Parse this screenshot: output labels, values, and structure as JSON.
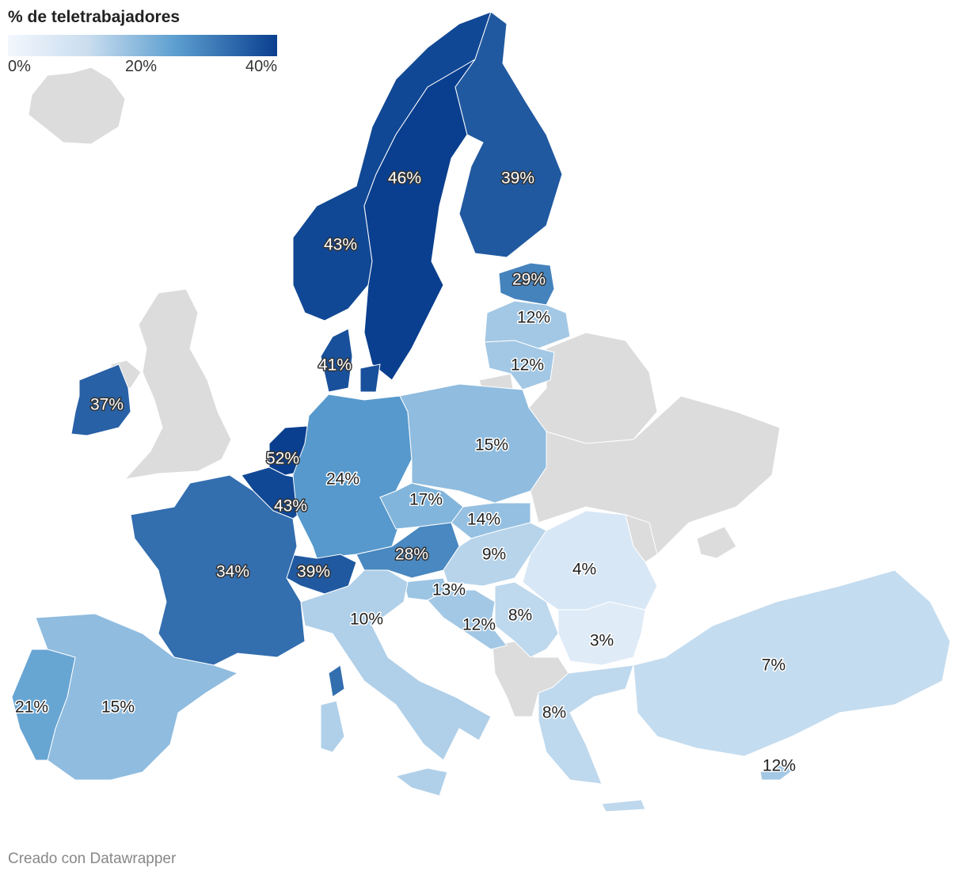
{
  "legend": {
    "title": "% de teletrabajadores",
    "ticks": [
      "0%",
      "20%",
      "40%"
    ]
  },
  "footer": {
    "credit": "Creado con Datawrapper"
  },
  "colors": {
    "no_data": "#dcdcdc",
    "scale_low": "#f3f7fd",
    "scale_mid": "#5d9fd0",
    "scale_high": "#0a3f8f"
  },
  "regions": [
    {
      "id": "iceland",
      "value": null
    },
    {
      "id": "united-kingdom",
      "value": null
    },
    {
      "id": "ireland",
      "value": 37,
      "label": "37%"
    },
    {
      "id": "norway",
      "value": 43,
      "label": "43%"
    },
    {
      "id": "sweden",
      "value": 46,
      "label": "46%"
    },
    {
      "id": "finland",
      "value": 39,
      "label": "39%"
    },
    {
      "id": "estonia",
      "value": 29,
      "label": "29%"
    },
    {
      "id": "latvia",
      "value": 12,
      "label": "12%"
    },
    {
      "id": "lithuania",
      "value": 12,
      "label": "12%"
    },
    {
      "id": "denmark",
      "value": 41,
      "label": "41%"
    },
    {
      "id": "netherlands",
      "value": 52,
      "label": "52%"
    },
    {
      "id": "belgium",
      "value": 43,
      "label": "43%"
    },
    {
      "id": "germany",
      "value": 24,
      "label": "24%"
    },
    {
      "id": "poland",
      "value": 15,
      "label": "15%"
    },
    {
      "id": "czechia",
      "value": 17,
      "label": "17%"
    },
    {
      "id": "slovakia",
      "value": 14,
      "label": "14%"
    },
    {
      "id": "austria",
      "value": 28,
      "label": "28%"
    },
    {
      "id": "hungary",
      "value": 9,
      "label": "9%"
    },
    {
      "id": "switzerland",
      "value": 39,
      "label": "39%"
    },
    {
      "id": "france",
      "value": 34,
      "label": "34%"
    },
    {
      "id": "slovenia",
      "value": 13,
      "label": "13%"
    },
    {
      "id": "croatia",
      "value": 12,
      "label": "12%"
    },
    {
      "id": "serbia",
      "value": 8,
      "label": "8%"
    },
    {
      "id": "romania",
      "value": 4,
      "label": "4%"
    },
    {
      "id": "bulgaria",
      "value": 3,
      "label": "3%"
    },
    {
      "id": "italy",
      "value": 10,
      "label": "10%"
    },
    {
      "id": "spain",
      "value": 15,
      "label": "15%"
    },
    {
      "id": "portugal",
      "value": 21,
      "label": "21%"
    },
    {
      "id": "greece",
      "value": 8,
      "label": "8%"
    },
    {
      "id": "turkey",
      "value": 7,
      "label": "7%"
    },
    {
      "id": "cyprus",
      "value": 12,
      "label": "12%"
    },
    {
      "id": "balkans",
      "value": null
    },
    {
      "id": "belarus",
      "value": null
    },
    {
      "id": "ukraine",
      "value": null
    },
    {
      "id": "moldova",
      "value": null
    },
    {
      "id": "russia-kaliningrad",
      "value": null
    }
  ]
}
